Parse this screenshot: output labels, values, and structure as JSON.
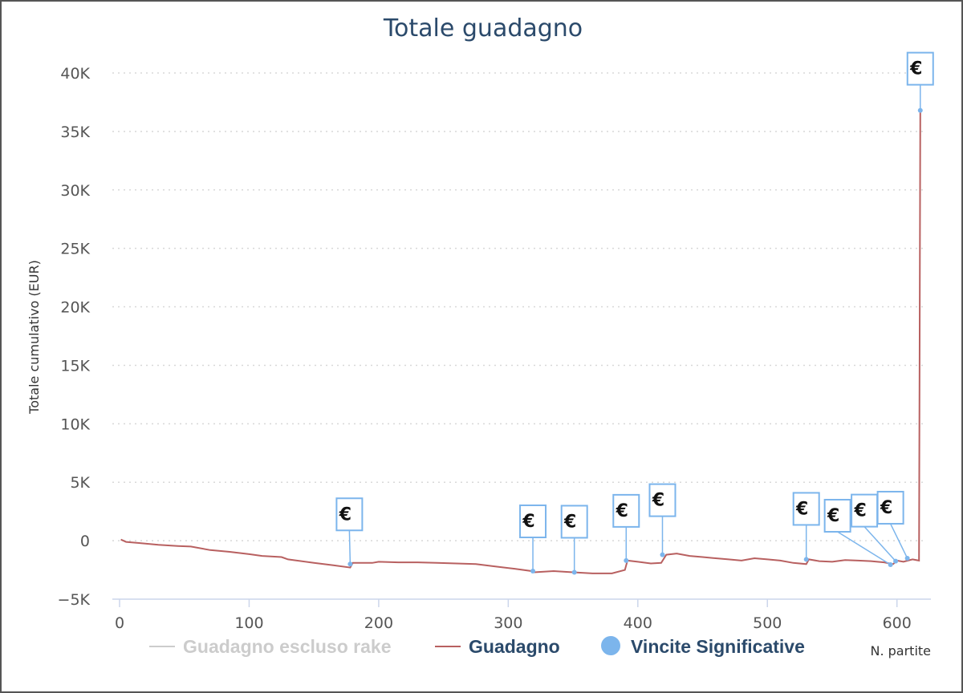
{
  "chart_data": {
    "type": "line",
    "title": "Totale guadagno",
    "xlabel": "N. partite",
    "ylabel": "Totale cumulativo (EUR)",
    "xlim": [
      0,
      620
    ],
    "ylim": [
      -5000,
      40000
    ],
    "x_ticks": [
      "0",
      "100",
      "200",
      "300",
      "400",
      "500",
      "600"
    ],
    "y_ticks": [
      "−5K",
      "0",
      "5K",
      "10K",
      "15K",
      "20K",
      "25K",
      "30K",
      "35K",
      "40K"
    ],
    "grid": "horizontal dotted",
    "legend_position": "bottom",
    "colors": {
      "title": "#2b4a6b",
      "guadagno": "#b86060",
      "escluso_rake": "#cccccc",
      "vincite": "#7cb5ec"
    },
    "series": [
      {
        "name": "Guadagno escluso rake",
        "hidden": true,
        "x": [],
        "y": []
      },
      {
        "name": "Guadagno",
        "x": [
          1,
          5,
          15,
          30,
          45,
          55,
          70,
          85,
          100,
          110,
          125,
          130,
          150,
          165,
          178,
          180,
          195,
          200,
          215,
          230,
          245,
          260,
          275,
          290,
          305,
          318,
          320,
          335,
          350,
          365,
          380,
          390,
          392,
          400,
          410,
          418,
          422,
          430,
          440,
          450,
          460,
          470,
          480,
          490,
          500,
          510,
          520,
          530,
          532,
          540,
          550,
          560,
          570,
          580,
          590,
          597,
          600,
          605,
          612,
          617,
          618
        ],
        "y": [
          100,
          -100,
          -200,
          -350,
          -450,
          -500,
          -800,
          -950,
          -1150,
          -1300,
          -1400,
          -1600,
          -1900,
          -2100,
          -2300,
          -1900,
          -1900,
          -1800,
          -1850,
          -1850,
          -1900,
          -1950,
          -2000,
          -2200,
          -2400,
          -2600,
          -2700,
          -2600,
          -2700,
          -2800,
          -2800,
          -2500,
          -1700,
          -1800,
          -1950,
          -1900,
          -1200,
          -1100,
          -1300,
          -1400,
          -1500,
          -1600,
          -1700,
          -1500,
          -1600,
          -1700,
          -1900,
          -2000,
          -1600,
          -1750,
          -1800,
          -1650,
          -1700,
          -1750,
          -1850,
          -2000,
          -1700,
          -1800,
          -1600,
          -1700,
          36800
        ]
      }
    ],
    "significant_wins": {
      "name": "Vincite Significative",
      "marker_label": "€",
      "points": [
        {
          "x": 178,
          "y": -2000
        },
        {
          "x": 319,
          "y": -2600
        },
        {
          "x": 351,
          "y": -2700
        },
        {
          "x": 391,
          "y": -1700
        },
        {
          "x": 419,
          "y": -1200
        },
        {
          "x": 530,
          "y": -1600
        },
        {
          "x": 595,
          "y": -2050
        },
        {
          "x": 599,
          "y": -1750
        },
        {
          "x": 608,
          "y": -1500
        },
        {
          "x": 618,
          "y": 36800
        }
      ]
    }
  }
}
